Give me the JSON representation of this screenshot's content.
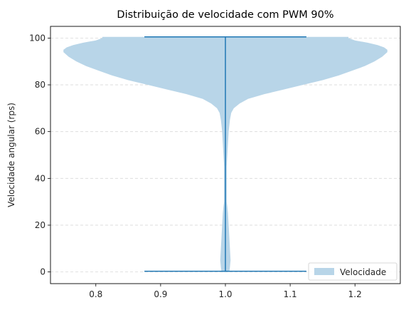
{
  "chart_data": {
    "type": "violin",
    "title": "Distribuição de velocidade com PWM 90%",
    "xlabel": "",
    "ylabel": "Velocidade angular (rps)",
    "xlim": [
      0.73,
      1.27
    ],
    "ylim": [
      -5,
      105
    ],
    "x_ticks": [
      0.8,
      0.9,
      1.0,
      1.1,
      1.2
    ],
    "y_ticks": [
      0,
      20,
      40,
      60,
      80,
      100
    ],
    "grid": {
      "y": true,
      "style": "dashed"
    },
    "legend": {
      "position": "lower-right",
      "entries": [
        "Velocidade"
      ]
    },
    "series": [
      {
        "name": "Velocidade",
        "position": 1.0,
        "min": 0.3,
        "max": 100.5,
        "fill_color": "#b8d5e8",
        "line_color": "#1f77b4",
        "density_profile": [
          [
            0.0,
            0.006
          ],
          [
            2,
            0.007
          ],
          [
            5,
            0.008
          ],
          [
            10,
            0.007
          ],
          [
            15,
            0.006
          ],
          [
            20,
            0.005
          ],
          [
            25,
            0.004
          ],
          [
            28,
            0.003
          ],
          [
            30,
            0.002
          ],
          [
            35,
            0.002
          ],
          [
            40,
            0.002
          ],
          [
            45,
            0.002
          ],
          [
            50,
            0.003
          ],
          [
            55,
            0.004
          ],
          [
            60,
            0.005
          ],
          [
            65,
            0.007
          ],
          [
            68,
            0.009
          ],
          [
            70,
            0.013
          ],
          [
            72,
            0.022
          ],
          [
            74,
            0.035
          ],
          [
            76,
            0.06
          ],
          [
            78,
            0.09
          ],
          [
            80,
            0.12
          ],
          [
            82,
            0.15
          ],
          [
            84,
            0.175
          ],
          [
            86,
            0.195
          ],
          [
            88,
            0.215
          ],
          [
            90,
            0.23
          ],
          [
            92,
            0.242
          ],
          [
            94,
            0.25
          ],
          [
            95,
            0.25
          ],
          [
            96,
            0.245
          ],
          [
            97,
            0.235
          ],
          [
            98,
            0.22
          ],
          [
            99,
            0.2
          ],
          [
            100,
            0.19
          ],
          [
            100.5,
            0.19
          ]
        ]
      }
    ]
  }
}
